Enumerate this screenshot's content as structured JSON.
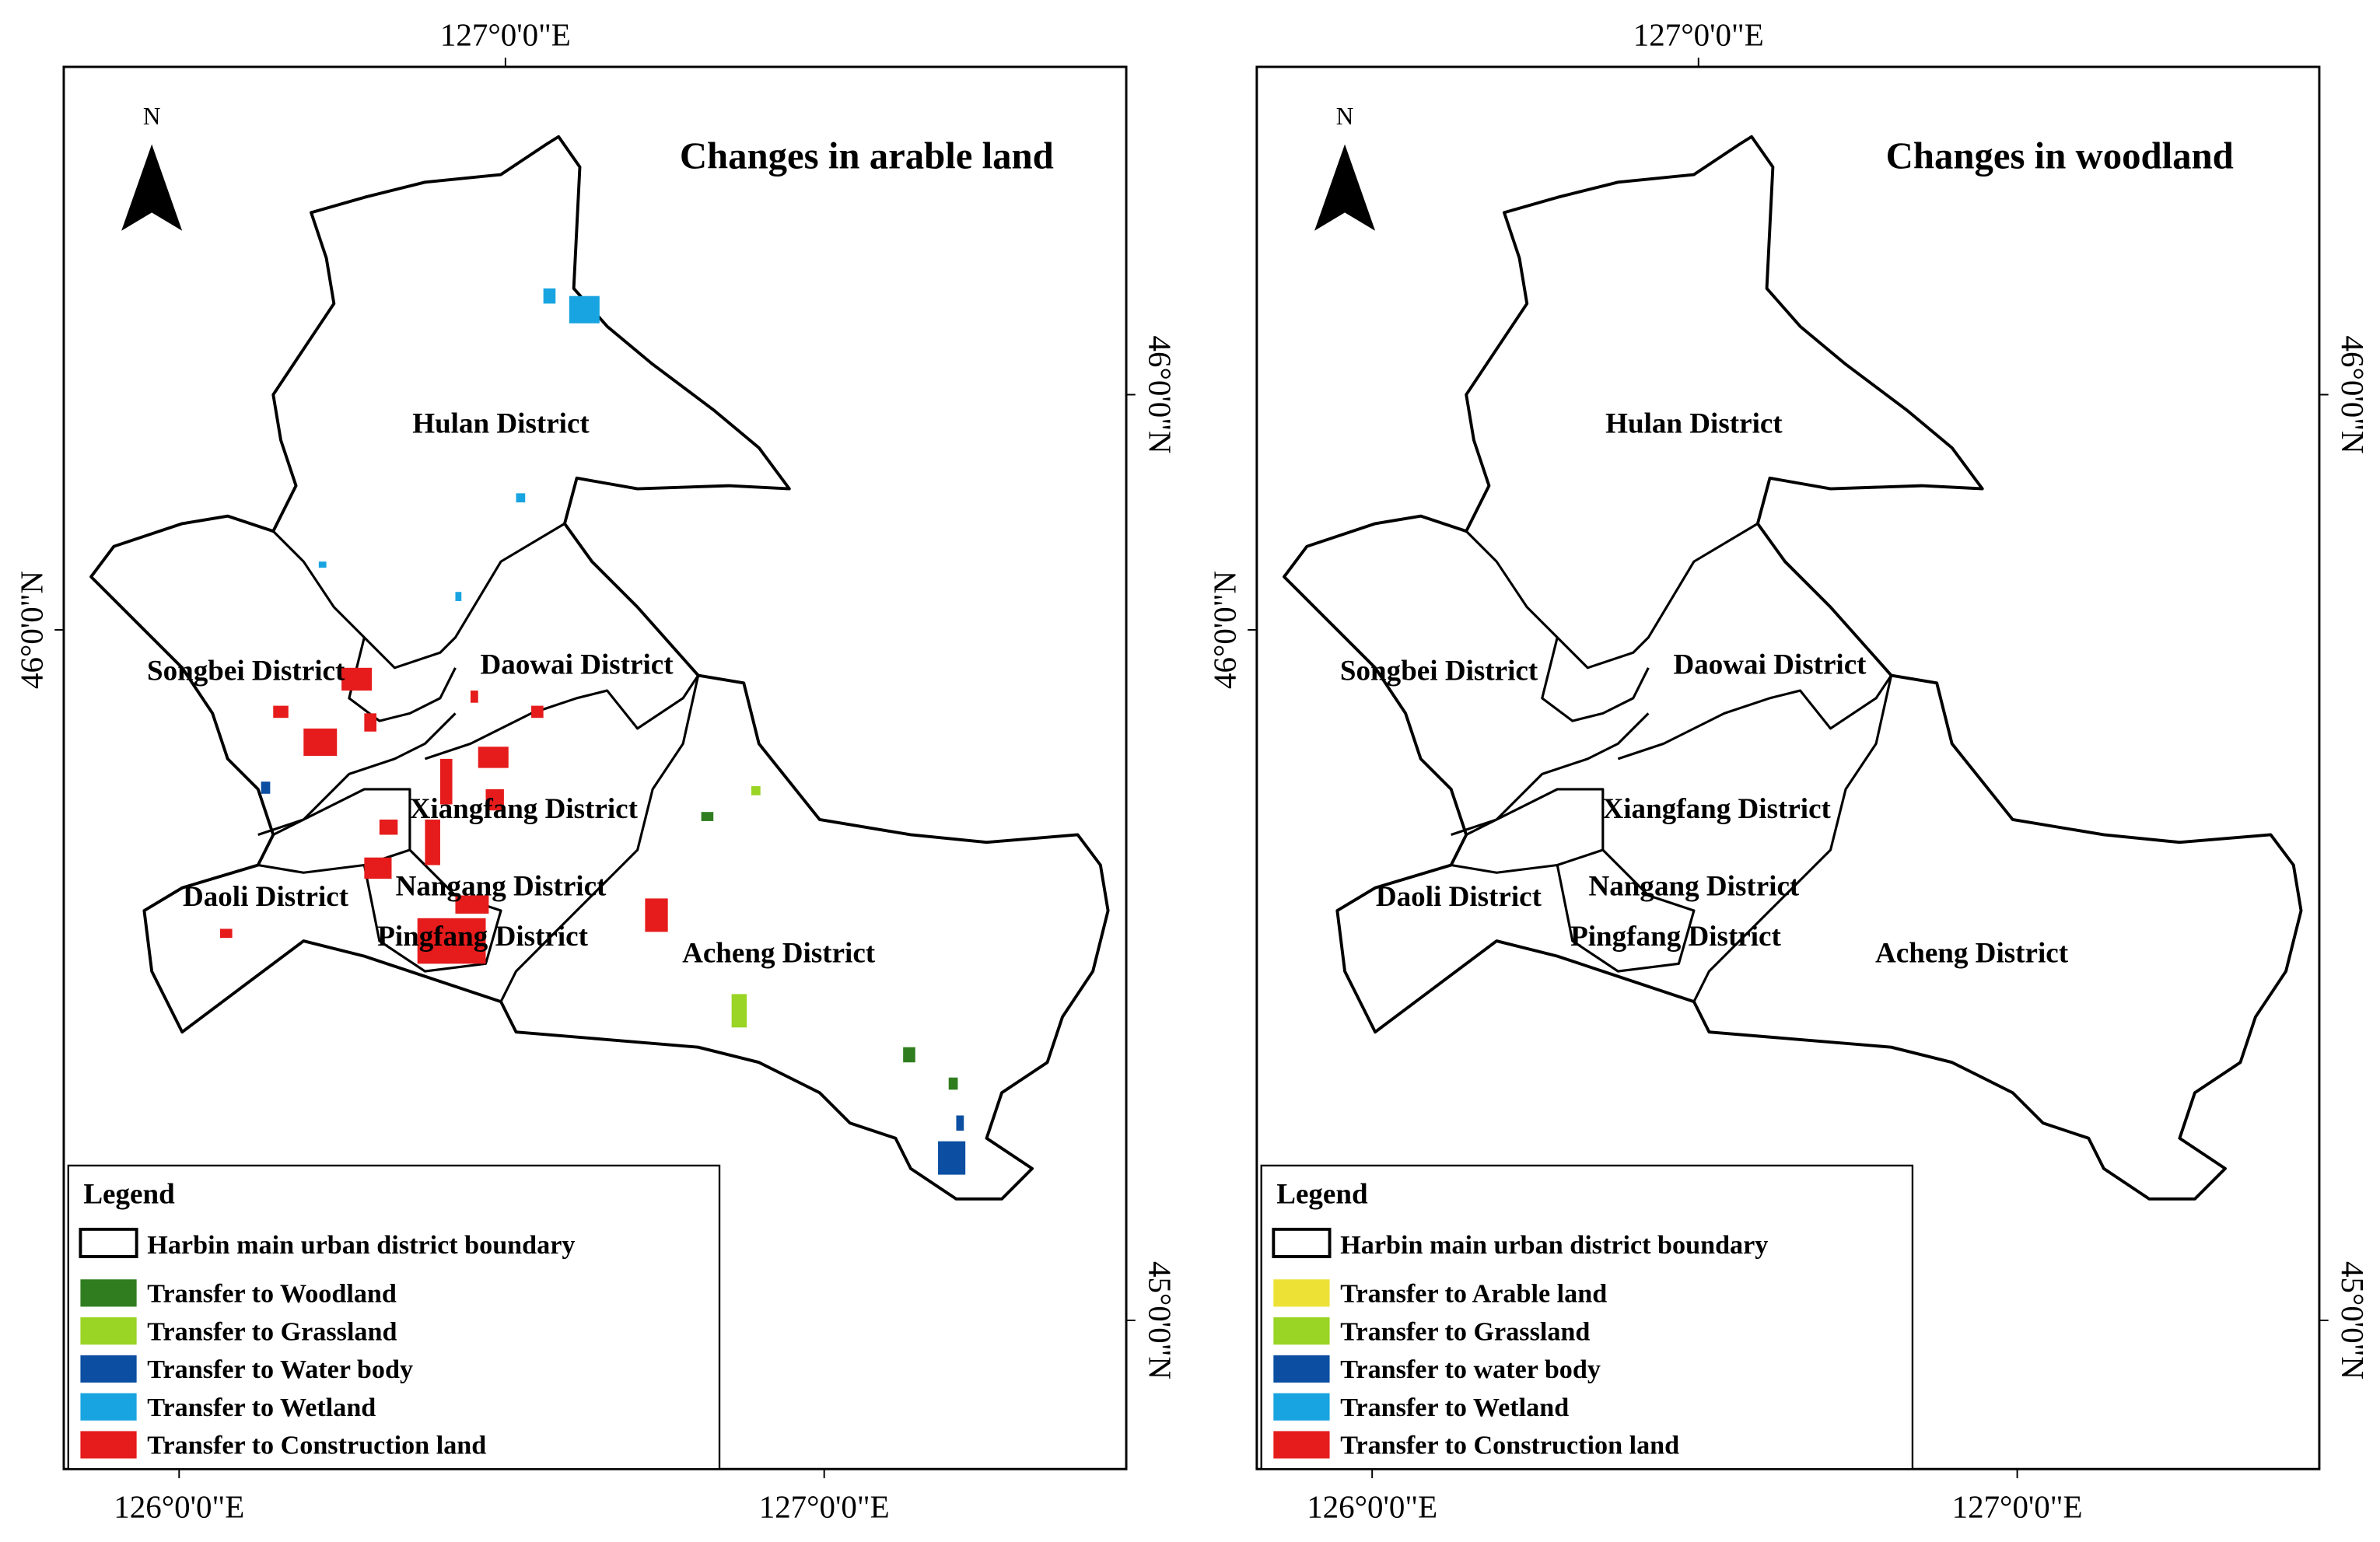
{
  "panels": [
    {
      "title": "Changes in arable land",
      "north": "N",
      "top_labels": [
        "127°0'0\"E"
      ],
      "bottom_labels": [
        "126°0'0\"E",
        "127°0'0\"E"
      ],
      "left_labels": [
        "46°0'0\"N"
      ],
      "right_labels": [
        "46°0'0\"N",
        "45°0'0\"N"
      ],
      "districts": [
        "Hulan District",
        "Songbei District",
        "Daowai District",
        "Xiangfang District",
        "Nangang District",
        "Daoli District",
        "Pingfang District",
        "Acheng District"
      ],
      "legend": {
        "title": "Legend",
        "boundary": "Harbin main urban district boundary",
        "items": [
          {
            "label": "Transfer to Woodland",
            "color": "#2f7d1f"
          },
          {
            "label": "Transfer to Grassland",
            "color": "#9ad424"
          },
          {
            "label": "Transfer to Water body",
            "color": "#0b4ea2"
          },
          {
            "label": "Transfer to Wetland",
            "color": "#18a4e0"
          },
          {
            "label": "Transfer to Construction land",
            "color": "#e61b1b"
          }
        ]
      }
    },
    {
      "title": "Changes in woodland",
      "north": "N",
      "top_labels": [
        "127°0'0\"E"
      ],
      "bottom_labels": [
        "126°0'0\"E",
        "127°0'0\"E"
      ],
      "left_labels": [
        "46°0'0\"N"
      ],
      "right_labels": [
        "46°0'0\"N",
        "45°0'0\"N"
      ],
      "districts": [
        "Hulan District",
        "Songbei District",
        "Daowai District",
        "Xiangfang District",
        "Nangang District",
        "Daoli District",
        "Pingfang District",
        "Acheng District"
      ],
      "legend": {
        "title": "Legend",
        "boundary": "Harbin main urban district boundary",
        "items": [
          {
            "label": "Transfer to Arable land",
            "color": "#ede135"
          },
          {
            "label": "Transfer to Grassland",
            "color": "#9ad424"
          },
          {
            "label": "Transfer to water body",
            "color": "#0b4ea2"
          },
          {
            "label": "Transfer to Wetland",
            "color": "#18a4e0"
          },
          {
            "label": "Transfer to Construction land",
            "color": "#e61b1b"
          }
        ]
      }
    }
  ]
}
